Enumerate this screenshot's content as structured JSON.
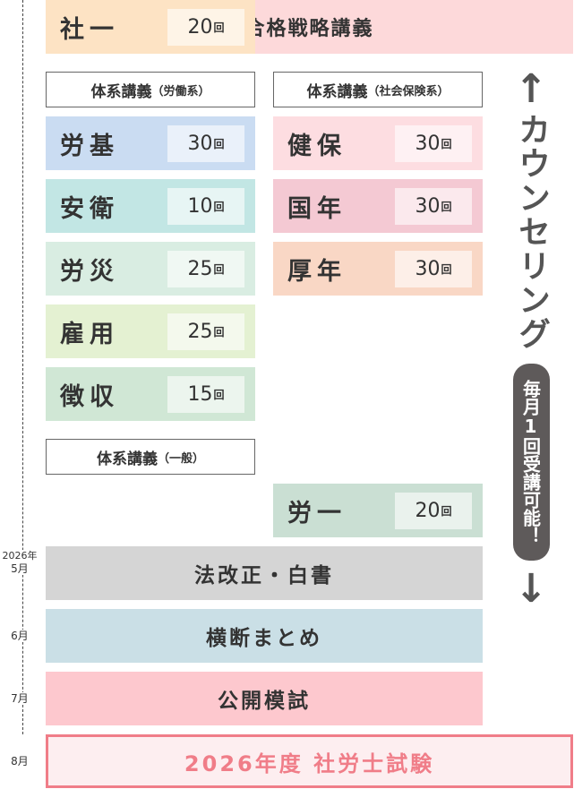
{
  "title": "合格戦略講義",
  "groups": {
    "labor": {
      "label": "体系講義",
      "sub": "（労働系）"
    },
    "social": {
      "label": "体系講義",
      "sub": "（社会保険系）"
    },
    "general": {
      "label": "体系講義",
      "sub": "（一般）"
    }
  },
  "unit": "回",
  "labor_items": [
    {
      "name": "労基",
      "count": "30",
      "color": "#cadcf2"
    },
    {
      "name": "安衛",
      "count": "10",
      "color": "#c2e6e4"
    },
    {
      "name": "労災",
      "count": "25",
      "color": "#d9ede2"
    },
    {
      "name": "雇用",
      "count": "25",
      "color": "#e4f1d2"
    },
    {
      "name": "徴収",
      "count": "15",
      "color": "#d0e7d5"
    }
  ],
  "social_items": [
    {
      "name": "健保",
      "count": "30",
      "color": "#fddde1"
    },
    {
      "name": "国年",
      "count": "30",
      "color": "#f4c9d3"
    },
    {
      "name": "厚年",
      "count": "30",
      "color": "#f9d7c5"
    }
  ],
  "general_items": [
    {
      "name": "労一",
      "count": "20",
      "color": "#cadfd3"
    },
    {
      "name": "社一",
      "count": "20",
      "color": "#fde3c4"
    }
  ],
  "bands": [
    {
      "label": "法改正・白書",
      "color": "#d5d5d5"
    },
    {
      "label": "横断まとめ",
      "color": "#cadfe6"
    },
    {
      "label": "公開模試",
      "color": "#fdc8ce"
    }
  ],
  "exam": "2026年度 社労士試験",
  "timeline": {
    "year": "2026年",
    "months": [
      "5月",
      "6月",
      "7月",
      "8月"
    ]
  },
  "counseling": {
    "label": "カウンセリング",
    "note": "毎月1回受講可能！",
    "up": "↑",
    "down": "↓"
  }
}
